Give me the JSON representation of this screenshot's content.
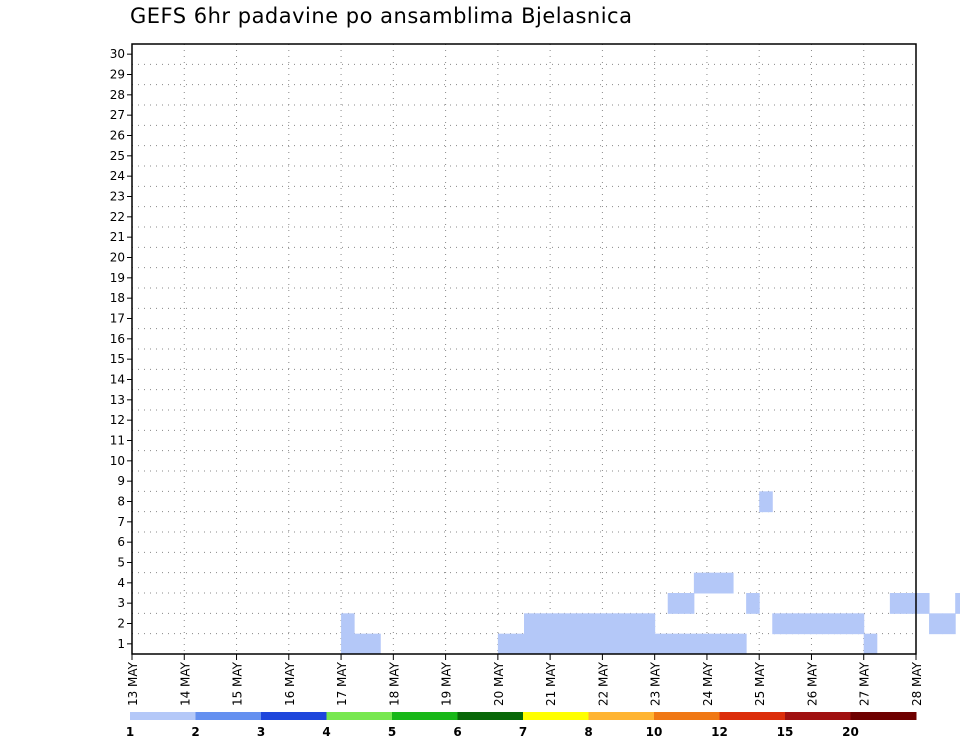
{
  "chart_data": {
    "type": "heatmap",
    "title": "GEFS 6hr padavine po ansamblima Bjelasnica",
    "xlabel": "",
    "ylabel": "",
    "y_categories": [
      1,
      2,
      3,
      4,
      5,
      6,
      7,
      8,
      9,
      10,
      11,
      12,
      13,
      14,
      15,
      16,
      17,
      18,
      19,
      20,
      21,
      22,
      23,
      24,
      25,
      26,
      27,
      28,
      29,
      30
    ],
    "x_ticks": [
      "13 MAY",
      "14 MAY",
      "15 MAY",
      "16 MAY",
      "17 MAY",
      "18 MAY",
      "19 MAY",
      "20 MAY",
      "21 MAY",
      "22 MAY",
      "23 MAY",
      "24 MAY",
      "25 MAY",
      "26 MAY",
      "27 MAY",
      "28 MAY"
    ],
    "time_step_hours": 6,
    "grid": true,
    "colorbar": {
      "position": "bottom",
      "levels": [
        "1",
        "2",
        "3",
        "4",
        "5",
        "6",
        "7",
        "8",
        "10",
        "12",
        "15",
        "20"
      ],
      "colors": [
        "#b4c8f8",
        "#6490f0",
        "#1e46dc",
        "#78e850",
        "#18b818",
        "#086808",
        "#ffff00",
        "#ffb432",
        "#f07814",
        "#dc2d0a",
        "#a01010",
        "#6e0000"
      ]
    },
    "cells": [
      [
        1,
        1,
        16,
        1
      ],
      [
        1,
        1,
        16,
        2
      ],
      [
        1,
        1,
        17,
        1
      ],
      [
        1,
        1,
        18,
        1
      ],
      [
        1,
        1,
        30,
        2
      ],
      [
        1,
        1,
        31,
        2
      ],
      [
        1,
        1,
        32,
        2
      ],
      [
        1,
        1,
        33,
        2
      ],
      [
        1,
        1,
        34,
        2
      ],
      [
        1,
        1,
        35,
        2
      ],
      [
        1,
        1,
        36,
        2
      ],
      [
        1,
        1,
        37,
        2
      ],
      [
        1,
        1,
        38,
        2
      ],
      [
        1,
        1,
        39,
        2
      ],
      [
        1,
        1,
        41,
        3
      ],
      [
        1,
        1,
        42,
        3
      ],
      [
        1,
        1,
        43,
        4
      ],
      [
        1,
        1,
        44,
        4
      ],
      [
        1,
        1,
        45,
        4
      ],
      [
        1,
        1,
        47,
        3
      ],
      [
        1,
        1,
        48,
        8
      ],
      [
        1,
        1,
        49,
        2
      ],
      [
        1,
        1,
        50,
        2
      ],
      [
        1,
        1,
        51,
        2
      ],
      [
        1,
        1,
        52,
        2
      ],
      [
        1,
        1,
        53,
        2
      ],
      [
        1,
        1,
        54,
        2
      ],
      [
        1,
        1,
        55,
        2
      ],
      [
        1,
        1,
        56,
        1
      ],
      [
        1,
        1,
        58,
        3
      ],
      [
        1,
        1,
        59,
        3
      ],
      [
        1,
        1,
        60,
        3
      ],
      [
        1,
        1,
        61,
        2
      ],
      [
        1,
        1,
        62,
        2
      ],
      [
        1,
        1,
        63,
        3
      ],
      [
        1,
        1,
        64,
        3
      ],
      [
        1,
        1,
        65,
        2
      ],
      [
        1,
        1,
        66,
        1
      ],
      [
        1,
        1,
        67,
        1
      ],
      [
        1,
        1,
        68,
        1
      ],
      [
        1,
        1,
        69,
        2
      ],
      [
        1,
        1,
        70,
        2
      ],
      [
        1,
        1,
        71,
        1
      ],
      [
        1,
        1,
        72,
        1
      ],
      [
        1,
        1,
        73,
        1
      ],
      [
        1,
        1,
        74,
        1
      ],
      [
        1,
        1,
        75,
        2
      ],
      [
        1,
        1,
        76,
        2
      ],
      [
        1,
        1,
        77,
        3
      ],
      [
        1,
        1,
        78,
        3
      ],
      [
        1,
        1,
        79,
        3
      ],
      [
        1,
        1,
        81,
        3
      ],
      [
        1,
        1,
        82,
        2
      ],
      [
        1,
        1,
        83,
        1
      ],
      [
        1,
        1,
        84,
        1
      ],
      [
        1,
        1,
        85,
        1
      ],
      [
        1,
        1,
        86,
        1
      ],
      [
        1,
        1,
        87,
        1
      ],
      [
        1,
        1,
        88,
        2
      ],
      [
        1,
        1,
        89,
        2
      ],
      [
        1,
        1,
        90,
        1
      ],
      [
        1,
        1,
        92,
        2
      ],
      [
        1,
        1,
        93,
        1
      ],
      [
        1,
        1,
        94,
        3
      ],
      [
        1,
        1,
        95,
        3
      ],
      [
        1,
        1,
        96,
        2
      ],
      [
        1,
        1,
        97,
        2
      ],
      [
        1,
        1,
        98,
        2
      ],
      [
        1,
        1,
        99,
        2
      ],
      [
        1,
        1,
        100,
        2
      ],
      [
        1,
        1,
        101,
        2
      ],
      [
        1,
        1,
        102,
        1
      ],
      [
        1,
        1,
        103,
        1
      ],
      [
        1,
        1,
        104,
        1
      ],
      [
        1,
        1,
        105,
        1
      ],
      [
        1,
        1,
        106,
        1
      ],
      [
        1,
        1,
        107,
        1
      ],
      [
        1,
        1,
        108,
        1
      ],
      [
        1,
        1,
        109,
        1
      ],
      [
        1,
        1,
        110,
        1
      ],
      [
        1,
        1,
        111,
        1
      ],
      [
        1,
        1,
        112,
        1
      ],
      [
        1,
        1,
        113,
        2
      ],
      [
        1,
        1,
        114,
        2
      ],
      [
        1,
        1,
        115,
        2
      ],
      [
        1,
        1,
        117,
        2
      ],
      [
        1,
        1,
        118,
        1
      ],
      [
        1,
        1,
        119,
        1
      ],
      [
        1,
        1,
        28,
        1
      ],
      [
        1,
        1,
        29,
        1
      ],
      [
        1,
        1,
        30,
        1
      ],
      [
        1,
        1,
        31,
        1
      ],
      [
        1,
        1,
        32,
        1
      ],
      [
        1,
        1,
        33,
        1
      ],
      [
        1,
        1,
        34,
        1
      ],
      [
        1,
        1,
        35,
        1
      ],
      [
        1,
        1,
        36,
        1
      ],
      [
        1,
        1,
        37,
        1
      ],
      [
        1,
        1,
        38,
        1
      ],
      [
        1,
        1,
        39,
        1
      ],
      [
        1,
        1,
        40,
        1
      ],
      [
        1,
        1,
        41,
        1
      ],
      [
        1,
        1,
        42,
        1
      ],
      [
        1,
        1,
        43,
        1
      ],
      [
        1,
        1,
        44,
        1
      ],
      [
        1,
        1,
        45,
        1
      ],
      [
        1,
        1,
        46,
        1
      ]
    ]
  }
}
